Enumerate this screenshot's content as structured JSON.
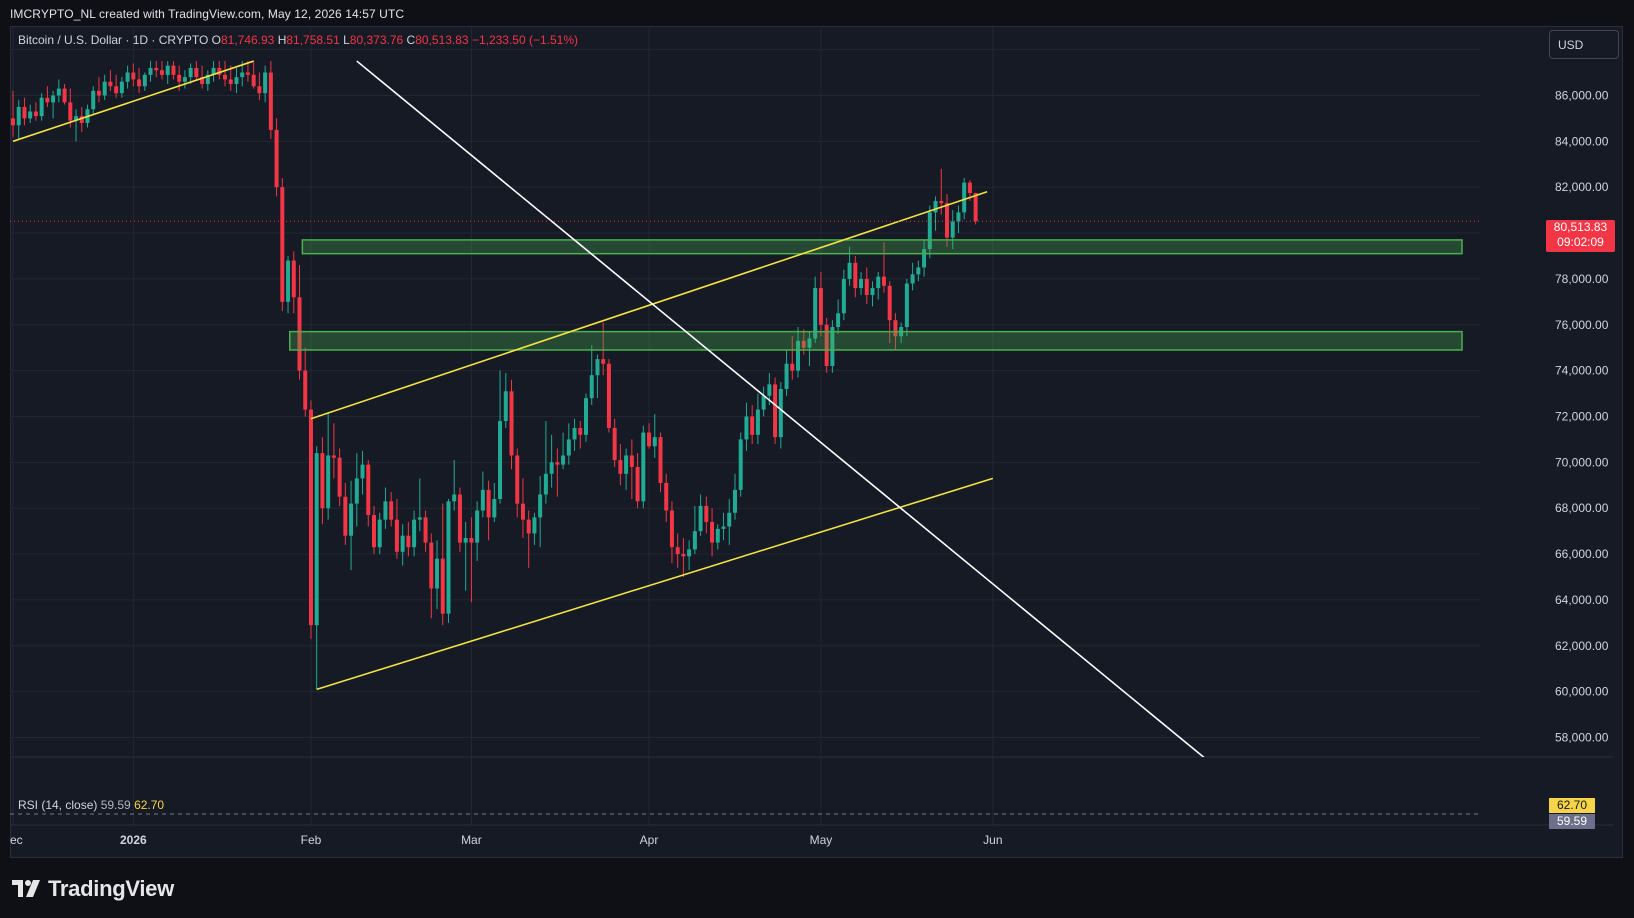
{
  "header": {
    "author_line": "IMCRYPTO_NL created with TradingView.com, May 12, 2026 14:57 UTC"
  },
  "legend": {
    "symbol": "Bitcoin / U.S. Dollar · 1D · CRYPTO",
    "open_label": "O",
    "open_value": "81,746.93",
    "high_label": "H",
    "high_value": "81,758.51",
    "low_label": "L",
    "low_value": "80,373.76",
    "close_label": "C",
    "close_value": "80,513.83",
    "change": "−1,233.50 (−1.51%)"
  },
  "toolbar": {
    "currency_label": "USD"
  },
  "price_scale": {
    "ticks": [
      "86,000.00",
      "84,000.00",
      "82,000.00",
      "78,000.00",
      "76,000.00",
      "74,000.00",
      "72,000.00",
      "70,000.00",
      "68,000.00",
      "66,000.00",
      "64,000.00",
      "62,000.00",
      "60,000.00",
      "58,000.00"
    ],
    "last_price": "80,513.83",
    "countdown": "09:02:09"
  },
  "time_scale": {
    "labels": [
      "ec",
      "2026",
      "Feb",
      "Mar",
      "Apr",
      "May",
      "Jun"
    ]
  },
  "rsi": {
    "title": "RSI (14, close)",
    "value1": "59.59",
    "value2": "62.70",
    "tag_yellow": "62.70",
    "tag_gray": "59.59"
  },
  "brand": {
    "name": "TradingView"
  },
  "colors": {
    "background": "#161a25",
    "up": "#22ab94",
    "down": "#f23645",
    "trend_yellow": "#f5e342",
    "trend_white": "#ffffff",
    "zone_green": "#4caf50"
  },
  "chart_data": {
    "type": "candlestick",
    "ylim": [
      57500,
      87500
    ],
    "x_axis": "days since 2025-12-11 (daily candles)",
    "candles": [
      [
        0,
        85000,
        86200,
        84200,
        84700
      ],
      [
        1,
        84700,
        85800,
        84100,
        85500
      ],
      [
        2,
        85500,
        85900,
        84700,
        85000
      ],
      [
        3,
        85000,
        85600,
        84800,
        85300
      ],
      [
        4,
        85300,
        85700,
        84900,
        85100
      ],
      [
        5,
        85100,
        86100,
        84900,
        85900
      ],
      [
        6,
        85900,
        86400,
        85500,
        85700
      ],
      [
        7,
        85700,
        86200,
        85000,
        86000
      ],
      [
        8,
        86000,
        86700,
        85700,
        86300
      ],
      [
        9,
        86300,
        86500,
        85600,
        85700
      ],
      [
        10,
        85700,
        86300,
        84600,
        84900
      ],
      [
        11,
        84900,
        85400,
        84000,
        85100
      ],
      [
        12,
        85100,
        85500,
        84400,
        84800
      ],
      [
        13,
        84800,
        85600,
        84600,
        85400
      ],
      [
        14,
        85400,
        86400,
        85200,
        86200
      ],
      [
        15,
        86200,
        86800,
        85700,
        86000
      ],
      [
        16,
        86000,
        86900,
        85800,
        86600
      ],
      [
        17,
        86600,
        87100,
        86200,
        86400
      ],
      [
        18,
        86400,
        86900,
        85900,
        86100
      ],
      [
        19,
        86100,
        86800,
        85900,
        86600
      ],
      [
        20,
        86600,
        87300,
        86300,
        87000
      ],
      [
        21,
        87000,
        87400,
        86400,
        86700
      ],
      [
        22,
        86700,
        87200,
        86100,
        86400
      ],
      [
        23,
        86400,
        87000,
        86200,
        86900
      ],
      [
        24,
        86900,
        87500,
        86600,
        87200
      ],
      [
        25,
        87200,
        87500,
        86800,
        87100
      ],
      [
        26,
        87100,
        87500,
        86700,
        86900
      ],
      [
        27,
        86900,
        87500,
        86500,
        87300
      ],
      [
        28,
        87300,
        87500,
        86700,
        86900
      ],
      [
        29,
        86900,
        87300,
        86200,
        86600
      ],
      [
        30,
        86600,
        87100,
        86300,
        86800
      ],
      [
        31,
        86800,
        87400,
        86500,
        87200
      ],
      [
        32,
        87200,
        87500,
        86700,
        86800
      ],
      [
        33,
        86800,
        87300,
        86300,
        86500
      ],
      [
        34,
        86500,
        87100,
        86200,
        86900
      ],
      [
        35,
        86900,
        87500,
        86600,
        87200
      ],
      [
        36,
        87200,
        87500,
        86700,
        86900
      ],
      [
        37,
        86900,
        87500,
        86400,
        86700
      ],
      [
        38,
        86700,
        87300,
        86200,
        86500
      ],
      [
        39,
        86500,
        87200,
        86100,
        86800
      ],
      [
        40,
        86800,
        87500,
        86400,
        87000
      ],
      [
        41,
        87000,
        87500,
        86600,
        86900
      ],
      [
        42,
        86900,
        87500,
        86300,
        86400
      ],
      [
        43,
        86400,
        87000,
        85800,
        86100
      ],
      [
        44,
        86100,
        87300,
        85700,
        87000
      ],
      [
        45,
        87000,
        87500,
        84100,
        84500
      ],
      [
        46,
        84500,
        85000,
        81600,
        82000
      ],
      [
        47,
        82000,
        82400,
        76600,
        77000
      ],
      [
        48,
        77000,
        79000,
        76500,
        78800
      ],
      [
        49,
        78800,
        79200,
        76500,
        77200
      ],
      [
        50,
        77200,
        78600,
        73600,
        74000
      ],
      [
        51,
        74000,
        75000,
        72000,
        72300
      ],
      [
        52,
        72300,
        72700,
        62300,
        62900
      ],
      [
        53,
        62900,
        70700,
        60100,
        70400
      ],
      [
        54,
        70400,
        71100,
        67300,
        68000
      ],
      [
        55,
        68000,
        72200,
        67500,
        70300
      ],
      [
        56,
        70300,
        71700,
        69300,
        70200
      ],
      [
        57,
        70200,
        70600,
        68100,
        68500
      ],
      [
        58,
        68500,
        69100,
        66400,
        66800
      ],
      [
        59,
        66800,
        69200,
        65300,
        68200
      ],
      [
        60,
        68200,
        70400,
        67200,
        69300
      ],
      [
        61,
        69300,
        70500,
        68600,
        69900
      ],
      [
        62,
        69900,
        70100,
        67200,
        67700
      ],
      [
        63,
        67700,
        68100,
        66000,
        66300
      ],
      [
        64,
        66300,
        67800,
        66000,
        67500
      ],
      [
        65,
        67500,
        68900,
        67100,
        68300
      ],
      [
        66,
        68300,
        68700,
        67200,
        67500
      ],
      [
        67,
        67500,
        68400,
        65800,
        66100
      ],
      [
        68,
        66100,
        67300,
        65500,
        66800
      ],
      [
        69,
        66800,
        67400,
        65900,
        66300
      ],
      [
        70,
        66300,
        67900,
        65900,
        67500
      ],
      [
        71,
        67500,
        69300,
        67000,
        67600
      ],
      [
        72,
        67600,
        67900,
        66100,
        66500
      ],
      [
        73,
        66500,
        66900,
        63200,
        64500
      ],
      [
        74,
        64500,
        66600,
        63600,
        65800
      ],
      [
        75,
        65800,
        68200,
        62900,
        63400
      ],
      [
        76,
        63400,
        68400,
        63000,
        68300
      ],
      [
        77,
        68300,
        70100,
        67900,
        68600
      ],
      [
        78,
        68600,
        68900,
        66100,
        66500
      ],
      [
        79,
        66500,
        67400,
        64400,
        66700
      ],
      [
        80,
        66700,
        67600,
        63900,
        66500
      ],
      [
        81,
        66500,
        68300,
        65700,
        67900
      ],
      [
        82,
        67900,
        69600,
        67600,
        68800
      ],
      [
        83,
        68800,
        69200,
        66600,
        67600
      ],
      [
        84,
        67600,
        69100,
        67400,
        68400
      ],
      [
        85,
        68400,
        74000,
        68200,
        71800
      ],
      [
        86,
        71800,
        73900,
        71500,
        73100
      ],
      [
        87,
        73100,
        73600,
        69700,
        70300
      ],
      [
        88,
        70300,
        70600,
        67600,
        68200
      ],
      [
        89,
        68200,
        69300,
        66700,
        67500
      ],
      [
        90,
        67500,
        67900,
        65400,
        66900
      ],
      [
        91,
        66900,
        67800,
        66400,
        67600
      ],
      [
        92,
        67600,
        69400,
        66300,
        68600
      ],
      [
        93,
        68600,
        71800,
        68200,
        69500
      ],
      [
        94,
        69500,
        71200,
        68900,
        70000
      ],
      [
        95,
        70000,
        70600,
        68500,
        69900
      ],
      [
        96,
        69900,
        71300,
        69700,
        70300
      ],
      [
        97,
        70300,
        71700,
        69900,
        71000
      ],
      [
        98,
        71000,
        71900,
        70500,
        71500
      ],
      [
        99,
        71500,
        71800,
        70600,
        71200
      ],
      [
        100,
        71200,
        73000,
        70900,
        72800
      ],
      [
        101,
        72800,
        75100,
        72500,
        73800
      ],
      [
        102,
        73800,
        74700,
        72800,
        74500
      ],
      [
        103,
        74500,
        76100,
        73800,
        74300
      ],
      [
        104,
        74300,
        74500,
        71300,
        71500
      ],
      [
        105,
        71500,
        71900,
        69800,
        70100
      ],
      [
        106,
        70100,
        70800,
        69000,
        69500
      ],
      [
        107,
        69500,
        70600,
        68800,
        70300
      ],
      [
        108,
        70300,
        71000,
        68400,
        69800
      ],
      [
        109,
        69800,
        70400,
        68000,
        68300
      ],
      [
        110,
        68300,
        71600,
        68000,
        71300
      ],
      [
        111,
        71300,
        71700,
        70600,
        70700
      ],
      [
        112,
        70700,
        72100,
        70200,
        71100
      ],
      [
        113,
        71100,
        71300,
        68700,
        69100
      ],
      [
        114,
        69100,
        69500,
        67400,
        67900
      ],
      [
        115,
        67900,
        68300,
        65600,
        66300
      ],
      [
        116,
        66300,
        66900,
        65400,
        66000
      ],
      [
        117,
        66000,
        66700,
        65000,
        65900
      ],
      [
        118,
        65900,
        66600,
        65300,
        66200
      ],
      [
        119,
        66200,
        68100,
        66000,
        67000
      ],
      [
        120,
        67000,
        68600,
        66800,
        68100
      ],
      [
        121,
        68100,
        68500,
        66900,
        67400
      ],
      [
        122,
        67400,
        68000,
        65900,
        66500
      ],
      [
        123,
        66500,
        67300,
        66200,
        67100
      ],
      [
        124,
        67100,
        67800,
        66600,
        67200
      ],
      [
        125,
        67200,
        68400,
        66400,
        67800
      ],
      [
        126,
        67800,
        69500,
        67500,
        68800
      ],
      [
        127,
        68800,
        71300,
        68500,
        71000
      ],
      [
        128,
        71000,
        72600,
        70500,
        72000
      ],
      [
        129,
        72000,
        72500,
        70800,
        71200
      ],
      [
        130,
        71200,
        73000,
        70800,
        72300
      ],
      [
        131,
        72300,
        73300,
        72000,
        72900
      ],
      [
        132,
        72900,
        73900,
        72500,
        73400
      ],
      [
        133,
        73400,
        73700,
        70800,
        71100
      ],
      [
        134,
        71100,
        73500,
        70600,
        73200
      ],
      [
        135,
        73200,
        74900,
        72900,
        74300
      ],
      [
        136,
        74300,
        75500,
        73600,
        74000
      ],
      [
        137,
        74000,
        75900,
        73700,
        75300
      ],
      [
        138,
        75300,
        75800,
        74700,
        75000
      ],
      [
        139,
        75000,
        75700,
        74200,
        75400
      ],
      [
        140,
        75400,
        78100,
        75200,
        77600
      ],
      [
        141,
        77600,
        78300,
        75500,
        76000
      ],
      [
        142,
        76000,
        76300,
        73900,
        74200
      ],
      [
        143,
        74200,
        76200,
        73900,
        75900
      ],
      [
        144,
        75900,
        77100,
        75600,
        76500
      ],
      [
        145,
        76500,
        78400,
        76200,
        78000
      ],
      [
        146,
        78000,
        79400,
        77700,
        78700
      ],
      [
        147,
        78700,
        79000,
        77200,
        77600
      ],
      [
        148,
        77600,
        78300,
        77300,
        78000
      ],
      [
        149,
        78000,
        78500,
        76900,
        77300
      ],
      [
        150,
        77300,
        77900,
        76800,
        77600
      ],
      [
        151,
        77600,
        78300,
        77100,
        78100
      ],
      [
        152,
        78100,
        79600,
        77400,
        77700
      ],
      [
        153,
        77700,
        77900,
        75200,
        76200
      ],
      [
        154,
        76200,
        76500,
        74900,
        75500
      ],
      [
        155,
        75500,
        76100,
        75200,
        75900
      ],
      [
        156,
        75900,
        78000,
        75500,
        77800
      ],
      [
        157,
        77800,
        78700,
        77500,
        78200
      ],
      [
        158,
        78200,
        78800,
        77900,
        78500
      ],
      [
        159,
        78500,
        79700,
        78100,
        79300
      ],
      [
        160,
        79300,
        81200,
        78900,
        80900
      ],
      [
        161,
        80900,
        81600,
        80100,
        81400
      ],
      [
        162,
        81400,
        82800,
        80800,
        81300
      ],
      [
        163,
        81300,
        81700,
        79400,
        79800
      ],
      [
        164,
        79800,
        81000,
        79300,
        80500
      ],
      [
        165,
        80500,
        81200,
        80000,
        80900
      ],
      [
        166,
        80900,
        82400,
        80600,
        82200
      ],
      [
        167,
        82200,
        82300,
        81400,
        81747
      ],
      [
        168,
        81747,
        81759,
        80374,
        80514
      ]
    ],
    "horizontal_zones": [
      [
        79100,
        79700
      ],
      [
        74900,
        75700
      ]
    ],
    "trendlines": [
      {
        "color": "yellow",
        "from": [
          0,
          84000
        ],
        "to": [
          42,
          87500
        ]
      },
      {
        "color": "yellow",
        "from": [
          52,
          71900
        ],
        "to": [
          170,
          81800
        ]
      },
      {
        "color": "yellow",
        "from": [
          53,
          60100
        ],
        "to": [
          171,
          69300
        ]
      },
      {
        "color": "white",
        "from": [
          60,
          87500
        ],
        "to": [
          208,
          57100
        ]
      }
    ],
    "last_price": 80513.83
  }
}
